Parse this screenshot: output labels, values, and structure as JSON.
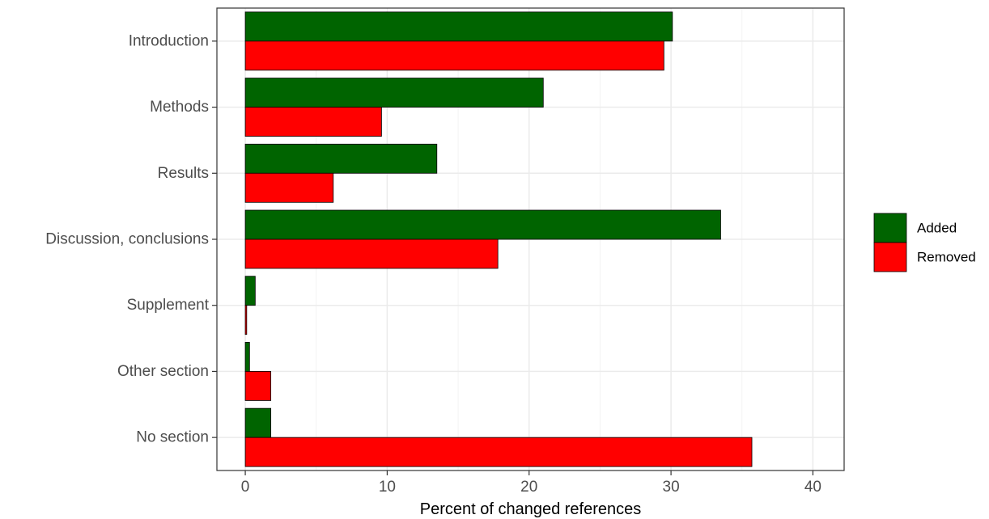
{
  "chart_data": {
    "type": "bar",
    "orientation": "horizontal",
    "categories": [
      "Introduction",
      "Methods",
      "Results",
      "Discussion, conclusions",
      "Supplement",
      "Other section",
      "No section"
    ],
    "series": [
      {
        "name": "Added",
        "color": "#006400",
        "values": [
          30.1,
          21.0,
          13.5,
          33.5,
          0.7,
          0.3,
          1.8
        ]
      },
      {
        "name": "Removed",
        "color": "#ff0000",
        "values": [
          29.5,
          9.6,
          6.2,
          17.8,
          0.1,
          1.8,
          35.7
        ]
      }
    ],
    "xlabel": "Percent of changed references",
    "ylabel": "",
    "xlim": [
      -2,
      42.2
    ],
    "xticks": [
      "0",
      "10",
      "20",
      "30",
      "40"
    ],
    "grid": true,
    "legend_position": "right"
  }
}
